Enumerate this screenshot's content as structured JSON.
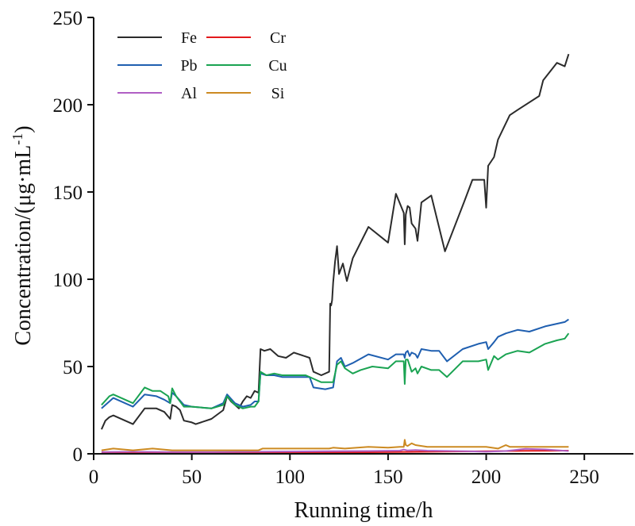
{
  "chart_data": {
    "type": "line",
    "title": "",
    "xlabel": "Running time/h",
    "ylabel_parts": {
      "before": "Concentration/(μg·mL",
      "sup": "-1",
      "after": ")"
    },
    "xlim": [
      0,
      275
    ],
    "ylim": [
      0,
      250
    ],
    "x_ticks": [
      0,
      50,
      100,
      150,
      200,
      250
    ],
    "y_ticks": [
      0,
      50,
      100,
      150,
      200,
      250
    ],
    "x_tick_labels": [
      "0",
      "50",
      "100",
      "150",
      "200",
      "250"
    ],
    "y_tick_labels": [
      "0",
      "50",
      "100",
      "150",
      "200",
      "250"
    ],
    "grid": false,
    "legend_position": "top-left",
    "series": [
      {
        "name": "Fe",
        "color": "#2b2b2b",
        "points": [
          [
            4,
            14
          ],
          [
            6,
            19
          ],
          [
            8,
            21
          ],
          [
            10,
            22
          ],
          [
            20,
            17
          ],
          [
            26,
            26
          ],
          [
            32,
            26
          ],
          [
            36,
            24
          ],
          [
            39,
            20
          ],
          [
            40,
            28
          ],
          [
            42,
            27
          ],
          [
            44,
            25
          ],
          [
            46,
            19
          ],
          [
            50,
            18
          ],
          [
            52,
            17
          ],
          [
            60,
            20
          ],
          [
            66,
            25
          ],
          [
            68,
            33
          ],
          [
            70,
            30
          ],
          [
            74,
            26
          ],
          [
            76,
            30
          ],
          [
            78,
            33
          ],
          [
            80,
            32
          ],
          [
            82,
            36
          ],
          [
            84,
            35
          ],
          [
            85,
            60
          ],
          [
            87,
            59
          ],
          [
            90,
            60
          ],
          [
            94,
            56
          ],
          [
            98,
            55
          ],
          [
            102,
            58
          ],
          [
            110,
            55
          ],
          [
            112,
            47
          ],
          [
            116,
            45
          ],
          [
            120,
            47
          ],
          [
            120.5,
            86
          ],
          [
            121,
            85
          ],
          [
            121.5,
            88
          ],
          [
            122,
            98
          ],
          [
            123,
            110
          ],
          [
            124,
            119
          ],
          [
            125,
            103
          ],
          [
            127,
            109
          ],
          [
            129,
            99
          ],
          [
            132,
            112
          ],
          [
            140,
            130
          ],
          [
            150,
            121
          ],
          [
            154,
            149
          ],
          [
            158,
            138
          ],
          [
            158.5,
            120
          ],
          [
            159,
            137
          ],
          [
            160,
            142
          ],
          [
            161,
            141
          ],
          [
            162,
            132
          ],
          [
            164,
            129
          ],
          [
            165,
            122
          ],
          [
            167,
            144
          ],
          [
            172,
            148
          ],
          [
            179,
            116
          ],
          [
            189,
            145
          ],
          [
            193,
            157
          ],
          [
            199,
            157
          ],
          [
            200,
            141
          ],
          [
            201,
            165
          ],
          [
            204,
            170
          ],
          [
            206,
            180
          ],
          [
            209,
            187
          ],
          [
            212,
            194
          ],
          [
            216,
            197
          ],
          [
            227,
            205
          ],
          [
            229,
            214
          ],
          [
            236,
            224
          ],
          [
            240,
            222
          ],
          [
            242,
            229
          ]
        ]
      },
      {
        "name": "Cr",
        "color": "#e3191c",
        "points": [
          [
            4,
            0.5
          ],
          [
            20,
            0.6
          ],
          [
            40,
            0.5
          ],
          [
            60,
            0.4
          ],
          [
            80,
            0.5
          ],
          [
            100,
            0.6
          ],
          [
            120,
            0.7
          ],
          [
            140,
            0.9
          ],
          [
            160,
            1.1
          ],
          [
            180,
            1.3
          ],
          [
            200,
            1.5
          ],
          [
            220,
            1.7
          ],
          [
            242,
            1.8
          ]
        ]
      },
      {
        "name": "Pb",
        "color": "#1f5fb0",
        "points": [
          [
            4,
            26
          ],
          [
            10,
            32
          ],
          [
            20,
            27
          ],
          [
            26,
            34
          ],
          [
            32,
            33
          ],
          [
            36,
            31
          ],
          [
            39,
            29
          ],
          [
            40,
            35
          ],
          [
            42,
            33
          ],
          [
            46,
            28
          ],
          [
            50,
            27
          ],
          [
            60,
            26
          ],
          [
            66,
            29
          ],
          [
            68,
            34
          ],
          [
            72,
            29
          ],
          [
            76,
            27
          ],
          [
            80,
            28
          ],
          [
            82,
            30
          ],
          [
            84,
            30
          ],
          [
            85,
            46
          ],
          [
            88,
            45
          ],
          [
            92,
            45
          ],
          [
            96,
            44
          ],
          [
            100,
            44
          ],
          [
            110,
            44
          ],
          [
            112,
            38
          ],
          [
            118,
            37
          ],
          [
            122,
            38
          ],
          [
            124,
            53
          ],
          [
            126,
            55
          ],
          [
            128,
            50
          ],
          [
            132,
            52
          ],
          [
            140,
            57
          ],
          [
            150,
            54
          ],
          [
            154,
            57
          ],
          [
            158,
            57
          ],
          [
            158.5,
            55
          ],
          [
            159,
            58
          ],
          [
            160,
            59
          ],
          [
            161,
            56
          ],
          [
            162,
            58
          ],
          [
            164,
            57
          ],
          [
            165,
            55
          ],
          [
            167,
            60
          ],
          [
            172,
            59
          ],
          [
            176,
            59
          ],
          [
            180,
            53
          ],
          [
            188,
            60
          ],
          [
            196,
            63
          ],
          [
            200,
            64
          ],
          [
            201,
            60
          ],
          [
            204,
            64
          ],
          [
            206,
            67
          ],
          [
            210,
            69
          ],
          [
            216,
            71
          ],
          [
            222,
            70
          ],
          [
            230,
            73
          ],
          [
            240,
            75.5
          ],
          [
            242,
            77
          ]
        ]
      },
      {
        "name": "Cu",
        "color": "#1aa352",
        "points": [
          [
            4,
            28
          ],
          [
            8,
            33
          ],
          [
            10,
            34
          ],
          [
            14,
            32
          ],
          [
            20,
            29
          ],
          [
            26,
            38
          ],
          [
            30,
            36
          ],
          [
            34,
            36
          ],
          [
            38,
            33
          ],
          [
            39,
            29
          ],
          [
            40,
            37.5
          ],
          [
            42,
            33
          ],
          [
            46,
            27
          ],
          [
            50,
            27
          ],
          [
            60,
            26
          ],
          [
            66,
            28
          ],
          [
            68,
            33
          ],
          [
            72,
            28
          ],
          [
            76,
            26
          ],
          [
            80,
            27
          ],
          [
            82,
            27
          ],
          [
            84,
            30
          ],
          [
            85,
            47
          ],
          [
            88,
            45
          ],
          [
            92,
            46
          ],
          [
            96,
            45
          ],
          [
            100,
            45
          ],
          [
            108,
            45
          ],
          [
            112,
            43
          ],
          [
            116,
            41
          ],
          [
            122,
            41
          ],
          [
            124,
            51
          ],
          [
            126,
            53
          ],
          [
            128,
            49
          ],
          [
            132,
            46
          ],
          [
            136,
            48
          ],
          [
            142,
            50
          ],
          [
            150,
            49
          ],
          [
            154,
            53
          ],
          [
            158,
            53
          ],
          [
            158.5,
            40
          ],
          [
            159,
            54
          ],
          [
            160,
            54
          ],
          [
            162,
            47
          ],
          [
            164,
            49
          ],
          [
            165,
            46
          ],
          [
            167,
            50
          ],
          [
            172,
            48
          ],
          [
            176,
            48
          ],
          [
            180,
            44
          ],
          [
            188,
            53
          ],
          [
            196,
            53
          ],
          [
            200,
            54
          ],
          [
            201,
            48
          ],
          [
            204,
            56
          ],
          [
            206,
            54
          ],
          [
            210,
            57
          ],
          [
            216,
            59
          ],
          [
            222,
            58
          ],
          [
            230,
            63
          ],
          [
            236,
            65
          ],
          [
            240,
            66
          ],
          [
            242,
            69
          ]
        ]
      },
      {
        "name": "Al",
        "color": "#b05fc4",
        "points": [
          [
            4,
            1
          ],
          [
            20,
            1.2
          ],
          [
            40,
            1
          ],
          [
            60,
            1
          ],
          [
            80,
            1.2
          ],
          [
            100,
            1.3
          ],
          [
            120,
            1.5
          ],
          [
            140,
            1.6
          ],
          [
            156,
            1.8
          ],
          [
            158,
            2.4
          ],
          [
            160,
            1.9
          ],
          [
            164,
            2.2
          ],
          [
            170,
            1.8
          ],
          [
            190,
            1.5
          ],
          [
            200,
            1.2
          ],
          [
            210,
            1.6
          ],
          [
            220,
            2.8
          ],
          [
            230,
            2.5
          ],
          [
            242,
            1.6
          ]
        ]
      },
      {
        "name": "Si",
        "color": "#cc8a22",
        "points": [
          [
            4,
            2
          ],
          [
            10,
            3
          ],
          [
            20,
            2
          ],
          [
            30,
            3
          ],
          [
            40,
            2
          ],
          [
            50,
            2
          ],
          [
            60,
            2
          ],
          [
            70,
            2
          ],
          [
            80,
            2
          ],
          [
            84,
            2
          ],
          [
            86,
            3
          ],
          [
            92,
            3
          ],
          [
            100,
            3
          ],
          [
            110,
            3
          ],
          [
            120,
            3
          ],
          [
            122,
            3.5
          ],
          [
            128,
            3
          ],
          [
            140,
            4
          ],
          [
            150,
            3.5
          ],
          [
            156,
            4
          ],
          [
            158,
            4
          ],
          [
            158.5,
            8
          ],
          [
            159,
            5
          ],
          [
            160,
            4.5
          ],
          [
            162,
            6
          ],
          [
            164,
            5
          ],
          [
            170,
            4
          ],
          [
            180,
            4
          ],
          [
            190,
            4
          ],
          [
            200,
            4
          ],
          [
            206,
            3
          ],
          [
            210,
            5
          ],
          [
            212,
            4
          ],
          [
            220,
            4
          ],
          [
            230,
            4
          ],
          [
            242,
            4
          ]
        ]
      }
    ]
  }
}
